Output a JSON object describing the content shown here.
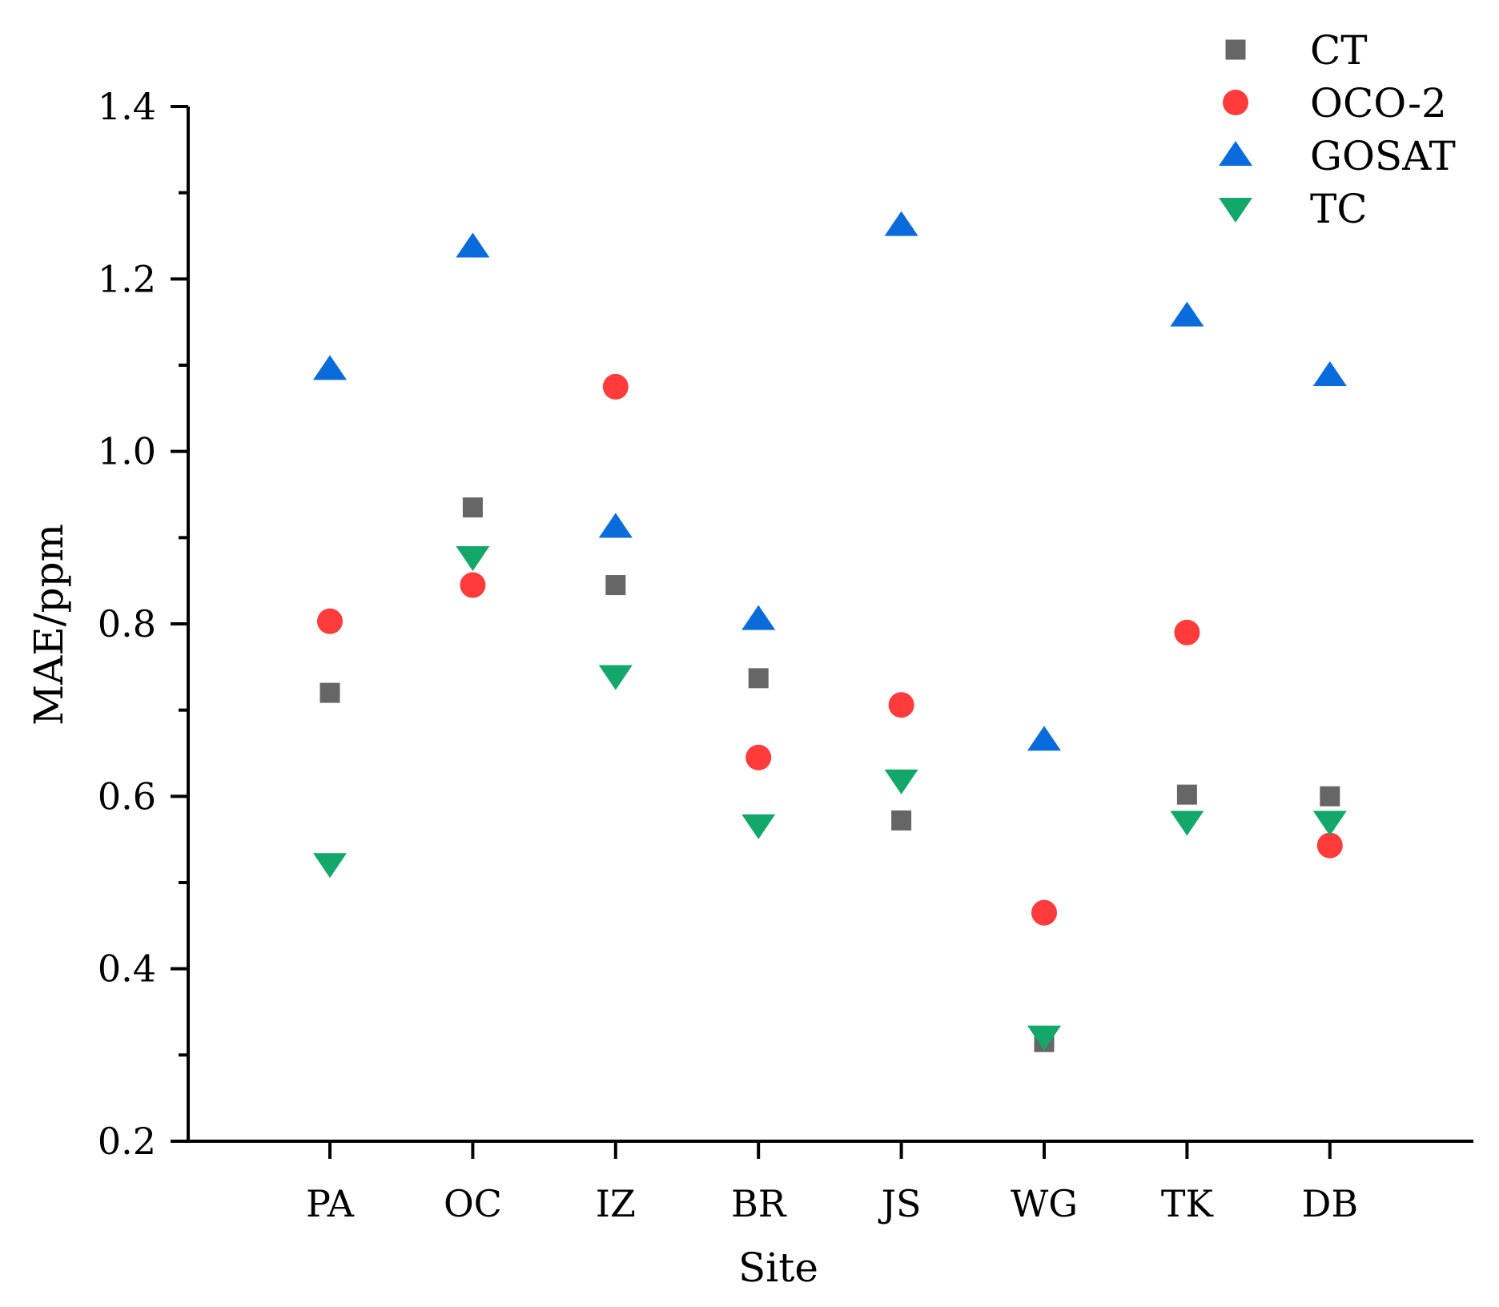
{
  "chart_data": {
    "type": "scatter",
    "title": "",
    "xlabel": "Site",
    "ylabel": "MAE/ppm",
    "categories": [
      "PA",
      "OC",
      "IZ",
      "BR",
      "JS",
      "WG",
      "TK",
      "DB"
    ],
    "ylim": [
      0.2,
      1.4
    ],
    "yticks": [
      "0.2",
      "0.4",
      "0.6",
      "0.8",
      "1.0",
      "1.2",
      "1.4"
    ],
    "grid": false,
    "legend_position": "top-right",
    "series": [
      {
        "name": "CT",
        "marker": "square",
        "color": "#666666",
        "values": [
          0.72,
          0.935,
          0.845,
          0.737,
          0.572,
          0.315,
          0.602,
          0.6
        ]
      },
      {
        "name": "OCO-2",
        "marker": "circle",
        "color": "#ff3b3b",
        "values": [
          0.803,
          0.845,
          1.075,
          0.645,
          0.706,
          0.465,
          0.79,
          0.543
        ]
      },
      {
        "name": "GOSAT",
        "marker": "triangle-up",
        "color": "#0a6bdc",
        "values": [
          1.095,
          1.237,
          0.912,
          0.805,
          1.262,
          0.665,
          1.157,
          1.088
        ]
      },
      {
        "name": "TC",
        "marker": "triangle-down",
        "color": "#13a86a",
        "values": [
          0.522,
          0.878,
          0.74,
          0.567,
          0.619,
          0.322,
          0.571,
          0.571
        ]
      }
    ]
  }
}
